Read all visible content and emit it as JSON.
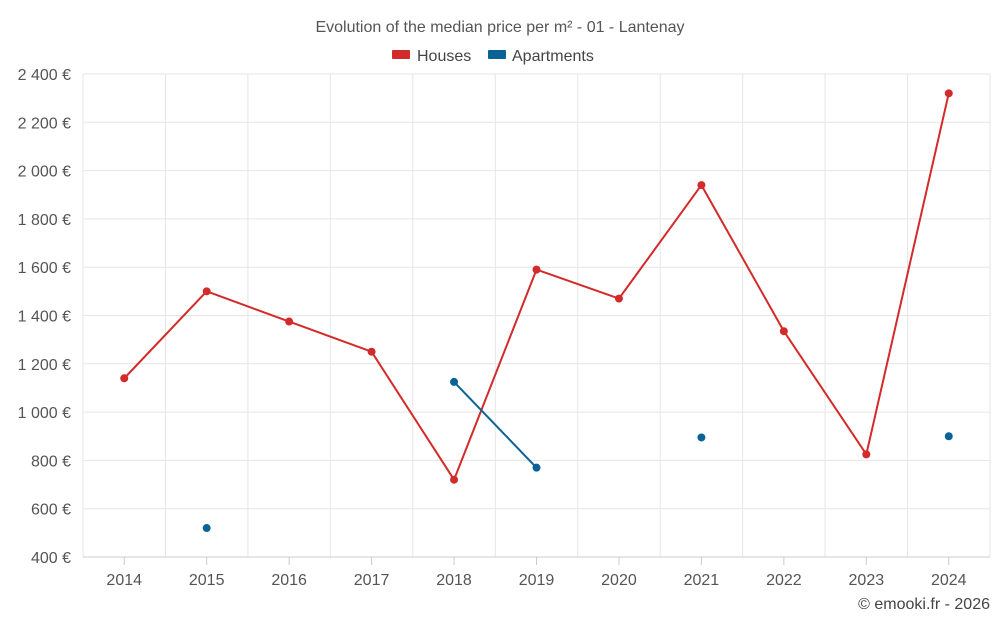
{
  "chart_data": {
    "type": "line",
    "title": "Evolution of the median price per m² - 01 - Lantenay",
    "xlabel": "",
    "ylabel": "",
    "categories": [
      "2014",
      "2015",
      "2016",
      "2017",
      "2018",
      "2019",
      "2020",
      "2021",
      "2022",
      "2023",
      "2024"
    ],
    "ylim": [
      400,
      2400
    ],
    "yticks": [
      400,
      600,
      800,
      1000,
      1200,
      1400,
      1600,
      1800,
      2000,
      2200,
      2400
    ],
    "ytick_labels": [
      "400 €",
      "600 €",
      "800 €",
      "1 000 €",
      "1 200 €",
      "1 400 €",
      "1 600 €",
      "1 800 €",
      "2 000 €",
      "2 200 €",
      "2 400 €"
    ],
    "grid": true,
    "legend_position": "top-center",
    "series": [
      {
        "name": "Houses",
        "color": "#d32a2a",
        "values": [
          1140,
          1500,
          1375,
          1250,
          720,
          1590,
          1470,
          1940,
          1335,
          825,
          2320
        ]
      },
      {
        "name": "Apartments",
        "color": "#0a6396",
        "values": [
          null,
          520,
          null,
          null,
          1125,
          770,
          null,
          895,
          null,
          null,
          900
        ]
      }
    ],
    "credit": "© emooki.fr - 2026"
  }
}
